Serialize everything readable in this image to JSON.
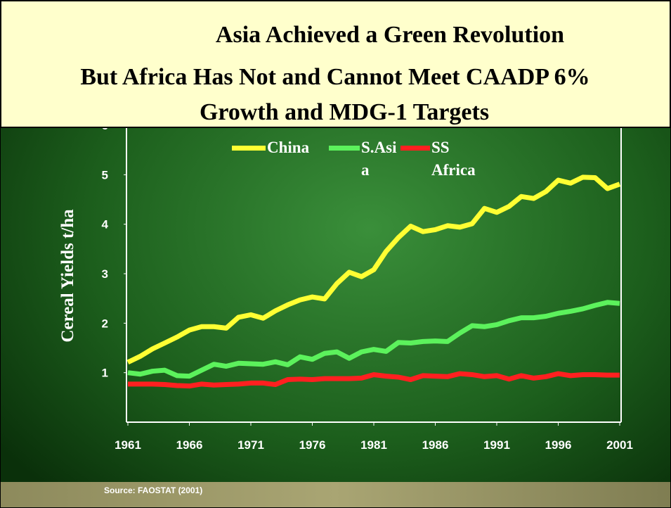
{
  "chart_data": {
    "type": "line",
    "title": [
      "Asia Achieved a Green Revolution",
      "But Africa Has Not and Cannot Meet CAADP 6%",
      "Growth and MDG-1 Targets"
    ],
    "y_label": "Cereal Yields  t/ha",
    "source": "Source:  FAOSTAT (2001)",
    "x": [
      1961,
      1962,
      1963,
      1964,
      1965,
      1966,
      1967,
      1968,
      1969,
      1970,
      1971,
      1972,
      1973,
      1974,
      1975,
      1976,
      1977,
      1978,
      1979,
      1980,
      1981,
      1982,
      1983,
      1984,
      1985,
      1986,
      1987,
      1988,
      1989,
      1990,
      1991,
      1992,
      1993,
      1994,
      1995,
      1996,
      1997,
      1998,
      1999,
      2000,
      2001
    ],
    "series": [
      {
        "name": "China",
        "color": "#ffff33",
        "values": [
          1.21,
          1.33,
          1.48,
          1.6,
          1.72,
          1.86,
          1.93,
          1.93,
          1.9,
          2.12,
          2.17,
          2.1,
          2.25,
          2.37,
          2.47,
          2.53,
          2.49,
          2.8,
          3.03,
          2.94,
          3.08,
          3.45,
          3.73,
          3.96,
          3.85,
          3.89,
          3.97,
          3.94,
          4.01,
          4.32,
          4.24,
          4.36,
          4.56,
          4.52,
          4.66,
          4.89,
          4.83,
          4.95,
          4.94,
          4.72,
          4.81
        ]
      },
      {
        "name": "S.Asia",
        "color": "#5cf25c",
        "values": [
          1.0,
          0.97,
          1.03,
          1.05,
          0.94,
          0.93,
          1.05,
          1.17,
          1.13,
          1.19,
          1.18,
          1.17,
          1.22,
          1.16,
          1.32,
          1.27,
          1.39,
          1.42,
          1.29,
          1.42,
          1.47,
          1.43,
          1.61,
          1.6,
          1.63,
          1.64,
          1.63,
          1.8,
          1.95,
          1.93,
          1.97,
          2.05,
          2.11,
          2.11,
          2.14,
          2.2,
          2.24,
          2.29,
          2.36,
          2.42,
          2.4
        ]
      },
      {
        "name": "SS Africa",
        "color": "#ff2020",
        "values": [
          0.77,
          0.77,
          0.77,
          0.76,
          0.74,
          0.73,
          0.77,
          0.75,
          0.76,
          0.77,
          0.79,
          0.79,
          0.76,
          0.86,
          0.87,
          0.86,
          0.88,
          0.88,
          0.88,
          0.89,
          0.96,
          0.93,
          0.91,
          0.86,
          0.94,
          0.93,
          0.92,
          0.98,
          0.96,
          0.92,
          0.94,
          0.87,
          0.94,
          0.89,
          0.92,
          0.98,
          0.94,
          0.96,
          0.96,
          0.95,
          0.95
        ]
      }
    ],
    "xlim": [
      1961,
      2001
    ],
    "xticks": [
      1961,
      1966,
      1971,
      1976,
      1981,
      1986,
      1991,
      1996,
      2001
    ],
    "ylim": [
      0,
      6
    ],
    "yticks": [
      1,
      2,
      3,
      4,
      5,
      6
    ]
  }
}
